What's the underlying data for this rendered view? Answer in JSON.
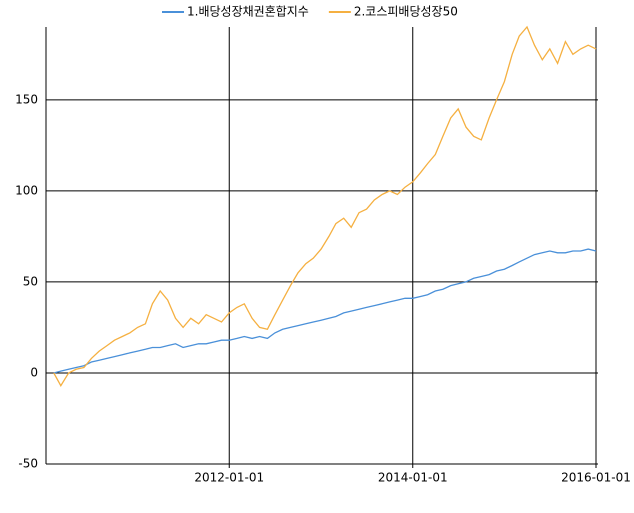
{
  "chart_data": {
    "type": "line",
    "x": [
      "2010-02-01",
      "2010-03-01",
      "2010-04-01",
      "2010-05-01",
      "2010-06-01",
      "2010-07-01",
      "2010-08-01",
      "2010-09-01",
      "2010-10-01",
      "2010-11-01",
      "2010-12-01",
      "2011-01-01",
      "2011-02-01",
      "2011-03-01",
      "2011-04-01",
      "2011-05-01",
      "2011-06-01",
      "2011-07-01",
      "2011-08-01",
      "2011-09-01",
      "2011-10-01",
      "2011-11-01",
      "2011-12-01",
      "2012-01-01",
      "2012-02-01",
      "2012-03-01",
      "2012-04-01",
      "2012-05-01",
      "2012-06-01",
      "2012-07-01",
      "2012-08-01",
      "2012-09-01",
      "2012-10-01",
      "2012-11-01",
      "2012-12-01",
      "2013-01-01",
      "2013-02-01",
      "2013-03-01",
      "2013-04-01",
      "2013-05-01",
      "2013-06-01",
      "2013-07-01",
      "2013-08-01",
      "2013-09-01",
      "2013-10-01",
      "2013-11-01",
      "2013-12-01",
      "2014-01-01",
      "2014-02-01",
      "2014-03-01",
      "2014-04-01",
      "2014-05-01",
      "2014-06-01",
      "2014-07-01",
      "2014-08-01",
      "2014-09-01",
      "2014-10-01",
      "2014-11-01",
      "2014-12-01",
      "2015-01-01",
      "2015-02-01",
      "2015-03-01",
      "2015-04-01",
      "2015-05-01",
      "2015-06-01",
      "2015-07-01",
      "2015-08-01",
      "2015-09-01",
      "2015-10-01",
      "2015-11-01",
      "2015-12-01",
      "2016-01-01"
    ],
    "series": [
      {
        "name": "1.배당성장채권혼합지수",
        "color": "#4a90d9",
        "values": [
          0,
          1,
          2,
          3,
          4,
          6,
          7,
          8,
          9,
          10,
          11,
          12,
          13,
          14,
          14,
          15,
          16,
          14,
          15,
          16,
          16,
          17,
          18,
          18,
          19,
          20,
          19,
          20,
          19,
          22,
          24,
          25,
          26,
          27,
          28,
          29,
          30,
          31,
          33,
          34,
          35,
          36,
          37,
          38,
          39,
          40,
          41,
          41,
          42,
          43,
          45,
          46,
          48,
          49,
          50,
          52,
          53,
          54,
          56,
          57,
          59,
          61,
          63,
          65,
          66,
          67,
          66,
          66,
          67,
          67,
          68,
          67
        ]
      },
      {
        "name": "2.코스피배당성장50",
        "color": "#f5b041",
        "values": [
          0,
          -7,
          0,
          2,
          3,
          8,
          12,
          15,
          18,
          20,
          22,
          25,
          27,
          38,
          45,
          40,
          30,
          25,
          30,
          27,
          32,
          30,
          28,
          33,
          36,
          38,
          30,
          25,
          24,
          32,
          40,
          48,
          55,
          60,
          63,
          68,
          75,
          82,
          85,
          80,
          88,
          90,
          95,
          98,
          100,
          98,
          102,
          105,
          110,
          115,
          120,
          130,
          140,
          145,
          135,
          130,
          128,
          140,
          150,
          160,
          175,
          185,
          190,
          180,
          172,
          178,
          170,
          182,
          175,
          178,
          180,
          178
        ]
      }
    ],
    "xlim": [
      "2010-01-01",
      "2016-01-01"
    ],
    "xticks": [
      "2012-01-01",
      "2014-01-01",
      "2016-01-01"
    ],
    "ylim": [
      -50,
      190
    ],
    "yticks": [
      -50,
      0,
      50,
      100,
      150
    ],
    "grid": true,
    "legend": "top"
  }
}
